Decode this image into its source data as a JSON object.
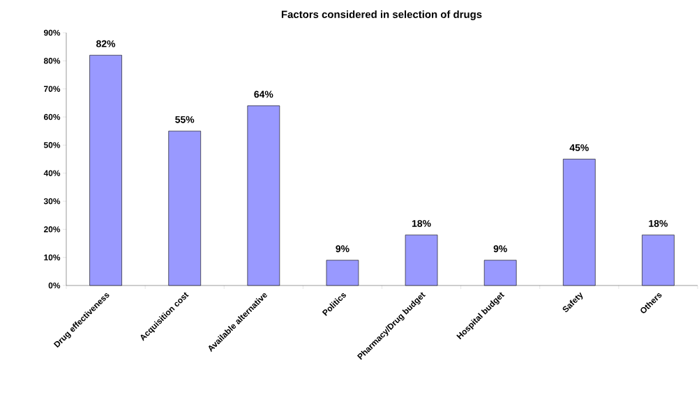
{
  "chart_data": {
    "type": "bar",
    "title": "Factors considered in selection of drugs",
    "categories": [
      "Drug effectiveness",
      "Acquisition cost",
      "Available alternative",
      "Politics",
      "Pharmacy/Drug budget",
      "Hospital budget",
      "Safety",
      "Others"
    ],
    "values": [
      82,
      55,
      64,
      9,
      18,
      9,
      45,
      18
    ],
    "value_labels": [
      "82%",
      "55%",
      "64%",
      "9%",
      "18%",
      "9%",
      "45%",
      "18%"
    ],
    "color": "#9999ff",
    "ylim": [
      0,
      90
    ],
    "yticks": [
      {
        "value": 0,
        "label": "0%"
      },
      {
        "value": 10,
        "label": "10%"
      },
      {
        "value": 20,
        "label": "20%"
      },
      {
        "value": 30,
        "label": "30%"
      },
      {
        "value": 40,
        "label": "40%"
      },
      {
        "value": 50,
        "label": "50%"
      },
      {
        "value": 60,
        "label": "60%"
      },
      {
        "value": 70,
        "label": "70%"
      },
      {
        "value": 80,
        "label": "80%"
      },
      {
        "value": 90,
        "label": "90%"
      }
    ],
    "grid": false
  }
}
